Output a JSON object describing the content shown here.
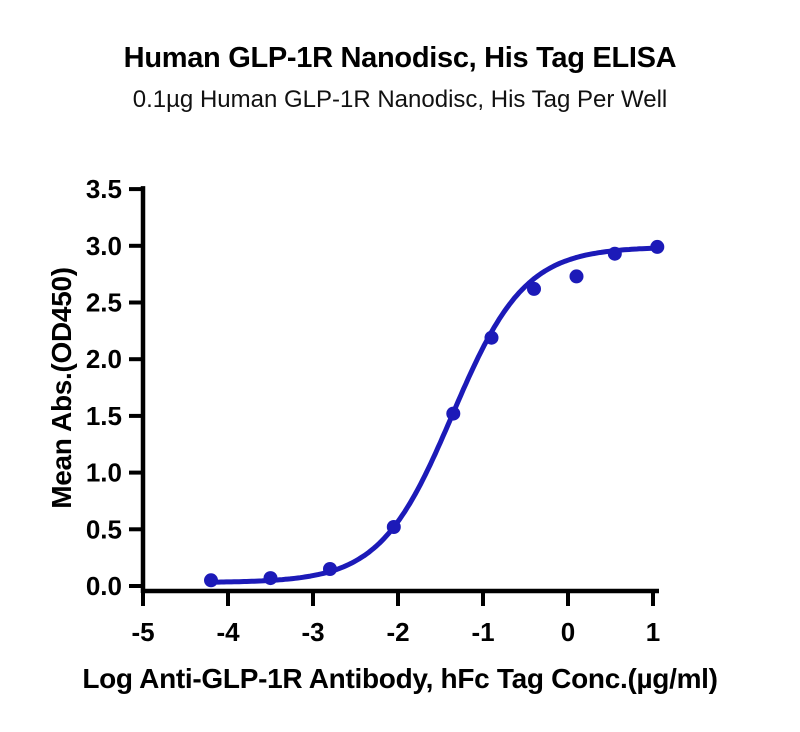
{
  "figure": {
    "title": "Human GLP-1R Nanodisc, His Tag ELISA",
    "subtitle": "0.1µg Human GLP-1R Nanodisc, His Tag Per Well"
  },
  "chart_data": {
    "type": "scatter",
    "title": "Human GLP-1R Nanodisc, His Tag ELISA",
    "subtitle": "0.1µg Human GLP-1R Nanodisc, His Tag Per Well",
    "xlabel": "Log Anti-GLP-1R Antibody, hFc Tag Conc.(µg/ml)",
    "ylabel": "Mean Abs.(OD450)",
    "xlim": [
      -5,
      1
    ],
    "ylim": [
      0,
      3.5
    ],
    "xticks": [
      -5,
      -4,
      -3,
      -2,
      -1,
      0,
      1
    ],
    "yticks": [
      0.0,
      0.5,
      1.0,
      1.5,
      2.0,
      2.5,
      3.0,
      3.5
    ],
    "grid": false,
    "legend": "none",
    "series": [
      {
        "name": "Anti-GLP-1R Antibody, hFc Tag",
        "x": [
          -4.2,
          -3.5,
          -2.8,
          -2.05,
          -1.35,
          -0.9,
          -0.4,
          0.1,
          0.55,
          1.05
        ],
        "y": [
          0.05,
          0.07,
          0.15,
          0.52,
          1.52,
          2.19,
          2.62,
          2.73,
          2.93,
          2.99
        ]
      }
    ],
    "fit_curve": {
      "model": "4PL",
      "bottom": 0.03,
      "top": 2.99,
      "logEC50": -1.36,
      "hill": 1.02,
      "x_start": -4.2,
      "x_end": 1.05
    },
    "colors": {
      "series": "#1c1ab8",
      "axis": "#000000",
      "text": "#000000"
    }
  }
}
